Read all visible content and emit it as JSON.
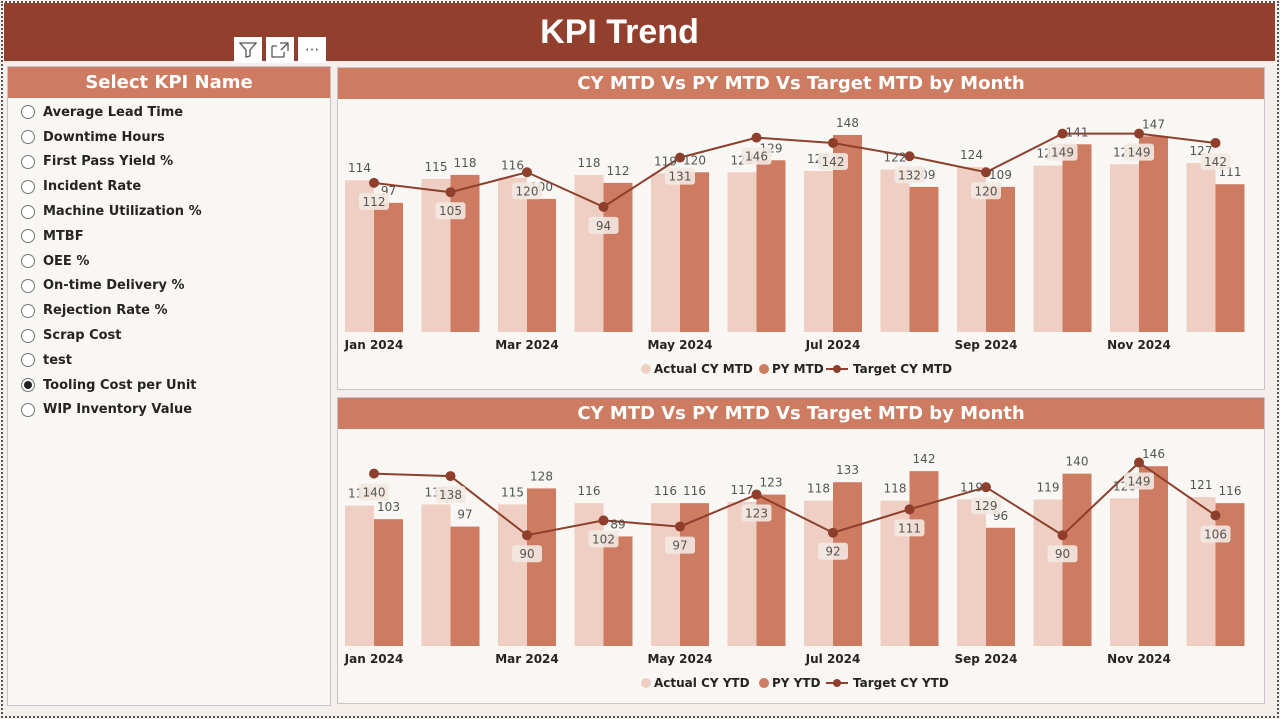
{
  "page": {
    "title": "KPI Trend"
  },
  "toolbar": {
    "filter_icon": "filter-icon",
    "focus_icon": "focus-mode-icon",
    "more_icon": "more-options-icon"
  },
  "slicer": {
    "title": "Select KPI Name",
    "items": [
      {
        "label": "Average Lead Time",
        "selected": false
      },
      {
        "label": "Downtime Hours",
        "selected": false
      },
      {
        "label": "First Pass Yield %",
        "selected": false
      },
      {
        "label": "Incident Rate",
        "selected": false
      },
      {
        "label": "Machine Utilization %",
        "selected": false
      },
      {
        "label": "MTBF",
        "selected": false
      },
      {
        "label": "OEE %",
        "selected": false
      },
      {
        "label": "On-time Delivery %",
        "selected": false
      },
      {
        "label": "Rejection Rate %",
        "selected": false
      },
      {
        "label": "Scrap Cost",
        "selected": false
      },
      {
        "label": "test",
        "selected": false
      },
      {
        "label": "Tooling Cost per Unit",
        "selected": true
      },
      {
        "label": "WIP Inventory Value",
        "selected": false
      }
    ]
  },
  "colors": {
    "actual": "#efcfc4",
    "py": "#cd7b61",
    "target": "#8e3f2c",
    "header": "#933f2e"
  },
  "chart_data": [
    {
      "type": "bar",
      "title": "CY MTD Vs PY MTD Vs Target MTD by Month",
      "categories": [
        "Jan 2024",
        "Feb 2024",
        "Mar 2024",
        "Apr 2024",
        "May 2024",
        "Jun 2024",
        "Jul 2024",
        "Aug 2024",
        "Sep 2024",
        "Oct 2024",
        "Nov 2024",
        "Dec 2024"
      ],
      "tick_labels": [
        "Jan 2024",
        "",
        "Mar 2024",
        "",
        "May 2024",
        "",
        "Jul 2024",
        "",
        "Sep 2024",
        "",
        "Nov 2024",
        ""
      ],
      "series": [
        {
          "name": "Actual CY MTD",
          "kind": "bar",
          "values": [
            114,
            115,
            116,
            118,
            119,
            120,
            121,
            122,
            124,
            125,
            126,
            127
          ]
        },
        {
          "name": "PY MTD",
          "kind": "bar",
          "values": [
            97,
            118,
            100,
            112,
            120,
            129,
            148,
            109,
            109,
            141,
            147,
            111
          ]
        },
        {
          "name": "Target CY MTD",
          "kind": "line",
          "values": [
            112,
            105,
            120,
            94,
            131,
            146,
            142,
            132,
            120,
            149,
            149,
            142
          ]
        }
      ],
      "ylim": [
        0,
        160
      ],
      "legend_position": "bottom"
    },
    {
      "type": "bar",
      "title": "CY MTD Vs PY MTD Vs Target MTD by Month",
      "categories": [
        "Jan 2024",
        "Feb 2024",
        "Mar 2024",
        "Apr 2024",
        "May 2024",
        "Jun 2024",
        "Jul 2024",
        "Aug 2024",
        "Sep 2024",
        "Oct 2024",
        "Nov 2024",
        "Dec 2024"
      ],
      "tick_labels": [
        "Jan 2024",
        "",
        "Mar 2024",
        "",
        "May 2024",
        "",
        "Jul 2024",
        "",
        "Sep 2024",
        "",
        "Nov 2024",
        ""
      ],
      "series": [
        {
          "name": "Actual CY YTD",
          "kind": "bar",
          "values": [
            114,
            115,
            115,
            116,
            116,
            117,
            118,
            118,
            119,
            119,
            120,
            121
          ]
        },
        {
          "name": "PY YTD",
          "kind": "bar",
          "values": [
            103,
            97,
            128,
            89,
            116,
            123,
            133,
            142,
            96,
            140,
            146,
            116
          ]
        },
        {
          "name": "Target CY YTD",
          "kind": "line",
          "values": [
            140,
            138,
            90,
            102,
            97,
            123,
            92,
            111,
            129,
            90,
            149,
            106
          ]
        }
      ],
      "ylim": [
        0,
        160
      ],
      "legend_position": "bottom"
    }
  ]
}
